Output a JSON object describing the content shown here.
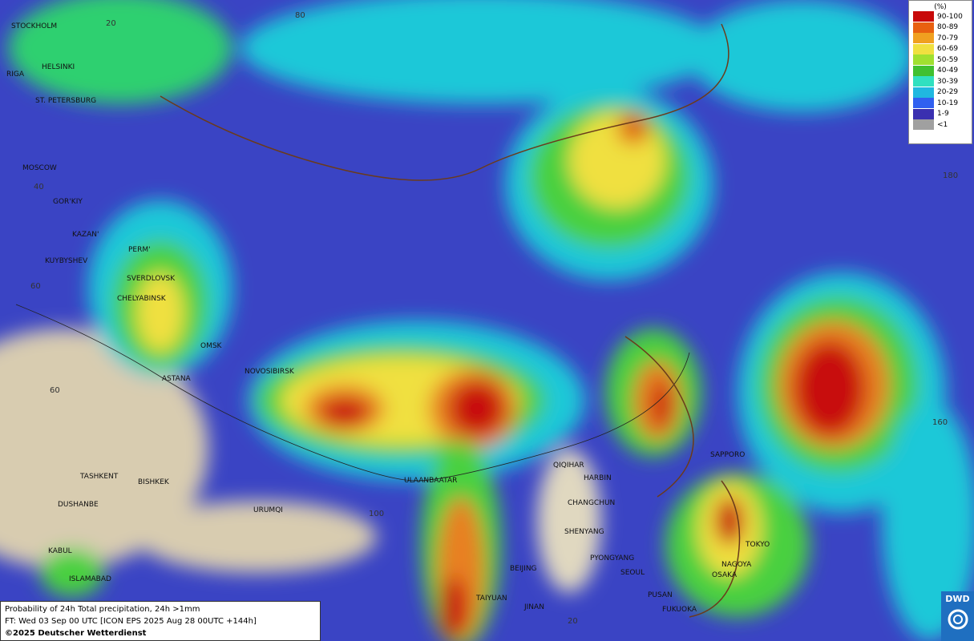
{
  "legend": {
    "title": "(%)",
    "items": [
      {
        "label": "90-100",
        "color": "#c80a0a"
      },
      {
        "label": "80-89",
        "color": "#e86010"
      },
      {
        "label": "70-79",
        "color": "#f0a020"
      },
      {
        "label": "60-69",
        "color": "#f0e040"
      },
      {
        "label": "50-59",
        "color": "#a0e030"
      },
      {
        "label": "40-49",
        "color": "#40c030"
      },
      {
        "label": "30-39",
        "color": "#30e0c0"
      },
      {
        "label": "20-29",
        "color": "#20b8e0"
      },
      {
        "label": "10-19",
        "color": "#3060f0"
      },
      {
        "label": "1-9",
        "color": "#3a30b0"
      },
      {
        "label": "<1",
        "color": "#a0a0a0"
      }
    ]
  },
  "caption": [
    "Probability of 24h Total precipitation, 24h >1mm",
    "FT: Wed 03 Sep 00 UTC [ICON EPS 2025 Aug 28 00UTC +144h]",
    "©2025 Deutscher Wetterdienst"
  ],
  "logo": "DWD",
  "graticule_labels": [
    20,
    80,
    40,
    60,
    60,
    180,
    160,
    100,
    20
  ],
  "cities": [
    "STOCKHOLM",
    "HELSINKI",
    "RIGA",
    "ST. PETERSBURG",
    "MOSCOW",
    "GOR'KIY",
    "KAZAN'",
    "KUYBYSHEV",
    "PERM'",
    "SVERDLOVSK",
    "CHELYABINSK",
    "OMSK",
    "ASTANA",
    "NOVOSIBIRSK",
    "TASHKENT",
    "BISHKEK",
    "DUSHANBE",
    "URUMQI",
    "KABUL",
    "ISLAMABAD",
    "ULAANBAATAR",
    "QIQIHAR",
    "HARBIN",
    "CHANGCHUN",
    "SHENYANG",
    "BEIJING",
    "PYONGYANG",
    "SEOUL",
    "TAIYUAN",
    "JINAN",
    "PUSAN",
    "FUKUOKA",
    "SAPPORO",
    "TOKYO",
    "NAGOYA",
    "OSAKA"
  ]
}
